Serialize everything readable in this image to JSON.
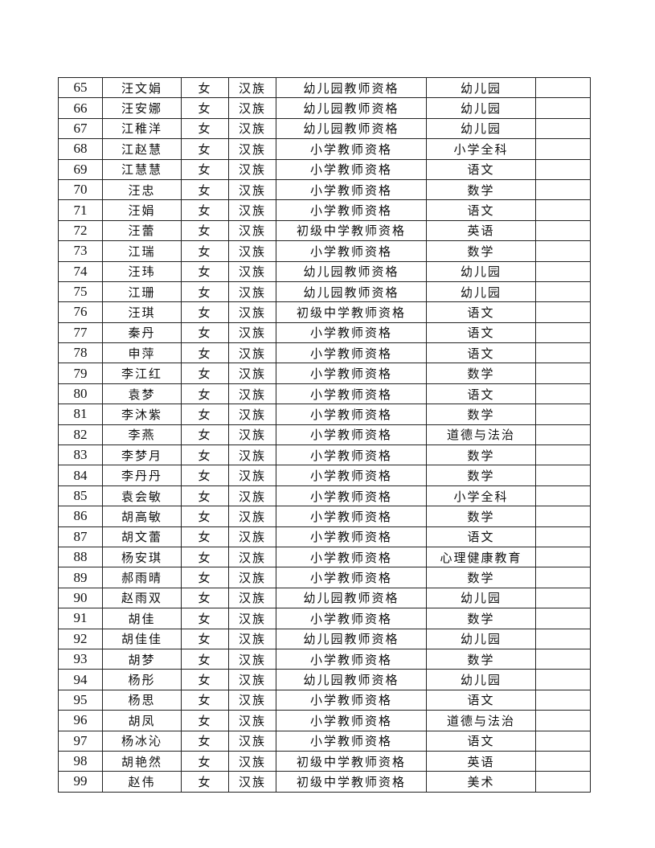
{
  "rows": [
    [
      "65",
      "汪文娟",
      "女",
      "汉族",
      "幼儿园教师资格",
      "幼儿园",
      ""
    ],
    [
      "66",
      "汪安娜",
      "女",
      "汉族",
      "幼儿园教师资格",
      "幼儿园",
      ""
    ],
    [
      "67",
      "江稚洋",
      "女",
      "汉族",
      "幼儿园教师资格",
      "幼儿园",
      ""
    ],
    [
      "68",
      "江赵慧",
      "女",
      "汉族",
      "小学教师资格",
      "小学全科",
      ""
    ],
    [
      "69",
      "江慧慧",
      "女",
      "汉族",
      "小学教师资格",
      "语文",
      ""
    ],
    [
      "70",
      "汪忠",
      "女",
      "汉族",
      "小学教师资格",
      "数学",
      ""
    ],
    [
      "71",
      "汪娟",
      "女",
      "汉族",
      "小学教师资格",
      "语文",
      ""
    ],
    [
      "72",
      "汪蕾",
      "女",
      "汉族",
      "初级中学教师资格",
      "英语",
      ""
    ],
    [
      "73",
      "江瑞",
      "女",
      "汉族",
      "小学教师资格",
      "数学",
      ""
    ],
    [
      "74",
      "汪玮",
      "女",
      "汉族",
      "幼儿园教师资格",
      "幼儿园",
      ""
    ],
    [
      "75",
      "江珊",
      "女",
      "汉族",
      "幼儿园教师资格",
      "幼儿园",
      ""
    ],
    [
      "76",
      "汪琪",
      "女",
      "汉族",
      "初级中学教师资格",
      "语文",
      ""
    ],
    [
      "77",
      "秦丹",
      "女",
      "汉族",
      "小学教师资格",
      "语文",
      ""
    ],
    [
      "78",
      "申萍",
      "女",
      "汉族",
      "小学教师资格",
      "语文",
      ""
    ],
    [
      "79",
      "李江红",
      "女",
      "汉族",
      "小学教师资格",
      "数学",
      ""
    ],
    [
      "80",
      "袁梦",
      "女",
      "汉族",
      "小学教师资格",
      "语文",
      ""
    ],
    [
      "81",
      "李沐紫",
      "女",
      "汉族",
      "小学教师资格",
      "数学",
      ""
    ],
    [
      "82",
      "李燕",
      "女",
      "汉族",
      "小学教师资格",
      "道德与法治",
      ""
    ],
    [
      "83",
      "李梦月",
      "女",
      "汉族",
      "小学教师资格",
      "数学",
      ""
    ],
    [
      "84",
      "李丹丹",
      "女",
      "汉族",
      "小学教师资格",
      "数学",
      ""
    ],
    [
      "85",
      "袁会敏",
      "女",
      "汉族",
      "小学教师资格",
      "小学全科",
      ""
    ],
    [
      "86",
      "胡高敏",
      "女",
      "汉族",
      "小学教师资格",
      "数学",
      ""
    ],
    [
      "87",
      "胡文蕾",
      "女",
      "汉族",
      "小学教师资格",
      "语文",
      ""
    ],
    [
      "88",
      "杨安琪",
      "女",
      "汉族",
      "小学教师资格",
      "心理健康教育",
      ""
    ],
    [
      "89",
      "郝雨晴",
      "女",
      "汉族",
      "小学教师资格",
      "数学",
      ""
    ],
    [
      "90",
      "赵雨双",
      "女",
      "汉族",
      "幼儿园教师资格",
      "幼儿园",
      ""
    ],
    [
      "91",
      "胡佳",
      "女",
      "汉族",
      "小学教师资格",
      "数学",
      ""
    ],
    [
      "92",
      "胡佳佳",
      "女",
      "汉族",
      "幼儿园教师资格",
      "幼儿园",
      ""
    ],
    [
      "93",
      "胡梦",
      "女",
      "汉族",
      "小学教师资格",
      "数学",
      ""
    ],
    [
      "94",
      "杨彤",
      "女",
      "汉族",
      "幼儿园教师资格",
      "幼儿园",
      ""
    ],
    [
      "95",
      "杨思",
      "女",
      "汉族",
      "小学教师资格",
      "语文",
      ""
    ],
    [
      "96",
      "胡凤",
      "女",
      "汉族",
      "小学教师资格",
      "道德与法治",
      ""
    ],
    [
      "97",
      "杨冰沁",
      "女",
      "汉族",
      "小学教师资格",
      "语文",
      ""
    ],
    [
      "98",
      "胡艳然",
      "女",
      "汉族",
      "初级中学教师资格",
      "英语",
      ""
    ],
    [
      "99",
      "赵伟",
      "女",
      "汉族",
      "初级中学教师资格",
      "美术",
      ""
    ]
  ]
}
